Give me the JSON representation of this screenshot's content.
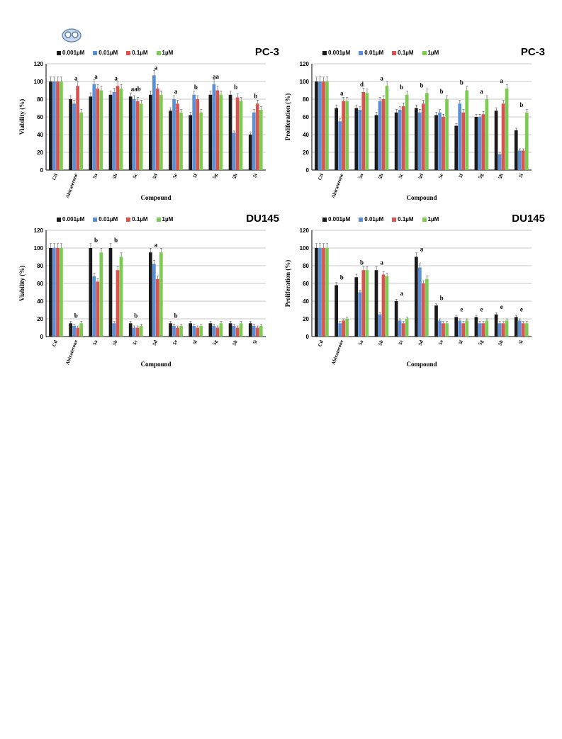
{
  "legend": [
    "0.001µM",
    "0.01µM",
    "0.1µM",
    "1µM"
  ],
  "colors": [
    "#1a1a1a",
    "#5b8fd6",
    "#d9534f",
    "#7ecb53"
  ],
  "chart_data": [
    {
      "type": "bar",
      "title": "PC-3",
      "ylabel": "Viability (%)",
      "xlabel": "Compound",
      "ylim": [
        0,
        120
      ],
      "yticks": [
        0,
        20,
        40,
        60,
        80,
        100,
        120
      ],
      "categories": [
        "Ctl",
        "Abiraterone",
        "5a",
        "5b",
        "5c",
        "5d",
        "5e",
        "5f",
        "5g",
        "5h",
        "5i"
      ],
      "series": [
        {
          "name": "0.001µM",
          "values": [
            100,
            80,
            83,
            85,
            83,
            85,
            67,
            62,
            85,
            85,
            40
          ]
        },
        {
          "name": "0.01µM",
          "values": [
            100,
            75,
            97,
            88,
            80,
            107,
            80,
            85,
            97,
            42,
            65
          ]
        },
        {
          "name": "0.1µM",
          "values": [
            100,
            95,
            92,
            95,
            78,
            92,
            75,
            80,
            90,
            82,
            75
          ]
        },
        {
          "name": "1µM",
          "values": [
            100,
            65,
            90,
            92,
            75,
            85,
            65,
            65,
            85,
            78,
            68
          ]
        }
      ],
      "annotations": [
        {
          "category": "Abiraterone",
          "label": "a"
        },
        {
          "category": "5a",
          "label": "a"
        },
        {
          "category": "5b",
          "label": "a"
        },
        {
          "category": "5c",
          "label": "aab"
        },
        {
          "category": "5d",
          "label": "a"
        },
        {
          "category": "5e",
          "label": "a"
        },
        {
          "category": "5f",
          "label": "b"
        },
        {
          "category": "5g",
          "label": "aa"
        },
        {
          "category": "5h",
          "label": "b"
        },
        {
          "category": "5i",
          "label": "b"
        }
      ]
    },
    {
      "type": "bar",
      "title": "PC-3",
      "ylabel": "Proliferation (%)",
      "xlabel": "Compound",
      "ylim": [
        0,
        120
      ],
      "yticks": [
        0,
        20,
        40,
        60,
        80,
        100,
        120
      ],
      "categories": [
        "Ctl",
        "Abiraterone",
        "5a",
        "5b",
        "5c",
        "5d",
        "5e",
        "5f",
        "5g",
        "5h",
        "5i"
      ],
      "series": [
        {
          "name": "0.001µM",
          "values": [
            100,
            70,
            70,
            62,
            65,
            70,
            62,
            50,
            60,
            67,
            45
          ]
        },
        {
          "name": "0.01µM",
          "values": [
            100,
            55,
            68,
            78,
            68,
            65,
            65,
            75,
            60,
            18,
            22
          ]
        },
        {
          "name": "0.1µM",
          "values": [
            100,
            78,
            88,
            80,
            72,
            75,
            60,
            65,
            63,
            75,
            22
          ]
        },
        {
          "name": "1µM",
          "values": [
            100,
            78,
            87,
            95,
            85,
            87,
            80,
            90,
            80,
            92,
            65
          ]
        }
      ],
      "annotations": [
        {
          "category": "Abiraterone",
          "label": "a"
        },
        {
          "category": "5a",
          "label": "d"
        },
        {
          "category": "5b",
          "label": "a"
        },
        {
          "category": "5c",
          "label": "b"
        },
        {
          "category": "5d",
          "label": "b"
        },
        {
          "category": "5e",
          "label": "b"
        },
        {
          "category": "5f",
          "label": "b"
        },
        {
          "category": "5g",
          "label": "a"
        },
        {
          "category": "5h",
          "label": "a"
        },
        {
          "category": "5i",
          "label": "b"
        }
      ]
    },
    {
      "type": "bar",
      "title": "DU145",
      "ylabel": "Viability (%)",
      "xlabel": "Compound",
      "ylim": [
        0,
        120
      ],
      "yticks": [
        0,
        20,
        40,
        60,
        80,
        100,
        120
      ],
      "categories": [
        "Ctl",
        "Abiraterone",
        "5a",
        "5b",
        "5c",
        "5d",
        "5e",
        "5f",
        "5g",
        "5h",
        "5i"
      ],
      "series": [
        {
          "name": "0.001µM",
          "values": [
            100,
            15,
            100,
            100,
            15,
            95,
            15,
            15,
            15,
            15,
            15
          ]
        },
        {
          "name": "0.01µM",
          "values": [
            100,
            12,
            68,
            15,
            10,
            82,
            12,
            12,
            12,
            12,
            12
          ]
        },
        {
          "name": "0.1µM",
          "values": [
            100,
            10,
            62,
            75,
            10,
            65,
            10,
            10,
            10,
            10,
            10
          ]
        },
        {
          "name": "1µM",
          "values": [
            100,
            15,
            95,
            90,
            12,
            95,
            12,
            12,
            15,
            15,
            12
          ]
        }
      ],
      "annotations": [
        {
          "category": "Abiraterone",
          "label": "b"
        },
        {
          "category": "5a",
          "label": "b"
        },
        {
          "category": "5b",
          "label": "b"
        },
        {
          "category": "5c",
          "label": "b"
        },
        {
          "category": "5d",
          "label": "a"
        },
        {
          "category": "5e",
          "label": "b"
        }
      ]
    },
    {
      "type": "bar",
      "title": "DU145",
      "ylabel": "Proliferation (%)",
      "xlabel": "Compound",
      "ylim": [
        0,
        120
      ],
      "yticks": [
        0,
        20,
        40,
        60,
        80,
        100,
        120
      ],
      "categories": [
        "Ctl",
        "Abiraterone",
        "5a",
        "5b",
        "5c",
        "5d",
        "5e",
        "5f",
        "5g",
        "5h",
        "5i"
      ],
      "series": [
        {
          "name": "0.001µM",
          "values": [
            100,
            58,
            67,
            75,
            40,
            90,
            35,
            22,
            22,
            25,
            22
          ]
        },
        {
          "name": "0.01µM",
          "values": [
            100,
            15,
            50,
            25,
            18,
            78,
            18,
            18,
            15,
            15,
            18
          ]
        },
        {
          "name": "0.1µM",
          "values": [
            100,
            18,
            75,
            70,
            15,
            60,
            15,
            15,
            15,
            15,
            15
          ]
        },
        {
          "name": "1µM",
          "values": [
            100,
            20,
            75,
            68,
            20,
            65,
            15,
            18,
            18,
            18,
            15
          ]
        }
      ],
      "annotations": [
        {
          "category": "Abiraterone",
          "label": "b"
        },
        {
          "category": "5a",
          "label": "b"
        },
        {
          "category": "5b",
          "label": "a"
        },
        {
          "category": "5c",
          "label": "a"
        },
        {
          "category": "5d",
          "label": "a"
        },
        {
          "category": "5e",
          "label": "b"
        },
        {
          "category": "5f",
          "label": "e"
        },
        {
          "category": "5g",
          "label": "e"
        },
        {
          "category": "5h",
          "label": "e"
        },
        {
          "category": "5i",
          "label": "e"
        }
      ]
    }
  ]
}
